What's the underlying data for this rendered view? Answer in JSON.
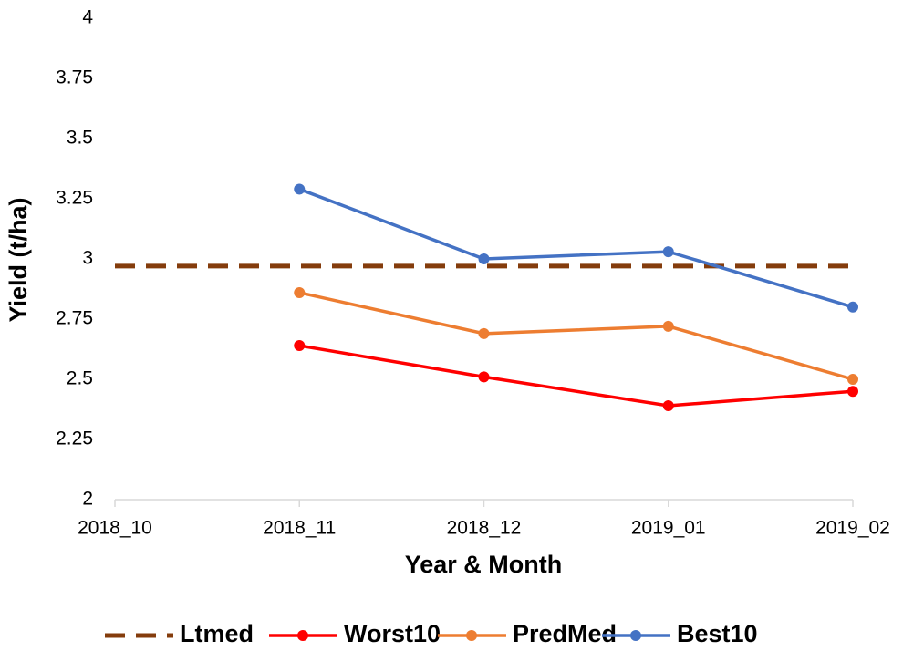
{
  "chart_data": {
    "type": "line",
    "x_label": "Year & Month",
    "y_label": "Yield (t/ha)",
    "categories": [
      "2018_10",
      "2018_11",
      "2018_12",
      "2019_01",
      "2019_02"
    ],
    "series": [
      {
        "name": "Ltmed",
        "color": "#843c0c",
        "dashed": true,
        "markers": false,
        "values": [
          2.97,
          2.97,
          2.97,
          2.97,
          2.97
        ]
      },
      {
        "name": "Worst10",
        "color": "#ff0000",
        "dashed": false,
        "markers": true,
        "values": [
          null,
          2.64,
          2.51,
          2.39,
          2.45
        ]
      },
      {
        "name": "PredMed",
        "color": "#ed7d31",
        "dashed": false,
        "markers": true,
        "values": [
          null,
          2.86,
          2.69,
          2.72,
          2.5
        ]
      },
      {
        "name": "Best10",
        "color": "#4472c4",
        "dashed": false,
        "markers": true,
        "values": [
          null,
          3.29,
          3.0,
          3.03,
          2.8
        ]
      }
    ],
    "ylim": [
      2,
      4
    ],
    "yticks": [
      2,
      2.25,
      2.5,
      2.75,
      3,
      3.25,
      3.5,
      3.75,
      4
    ],
    "grid": false,
    "legend": "bottom"
  }
}
